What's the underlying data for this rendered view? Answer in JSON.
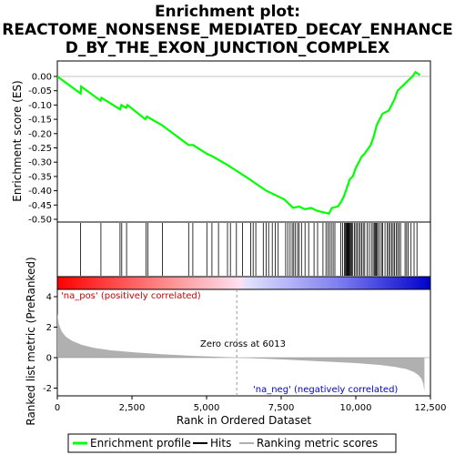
{
  "chart_data": {
    "type": "line",
    "title_line1": "Enrichment plot:",
    "title_line2": "REACTOME_NONSENSE_MEDIATED_DECAY_ENHANCE",
    "title_line3": "D_BY_THE_EXON_JUNCTION_COMPLEX",
    "es_ylabel": "Enrichment score (ES)",
    "metric_ylabel": "Ranked list metric (PreRanked)",
    "xlabel": "Rank in Ordered Dataset",
    "xlim": [
      0,
      12500
    ],
    "es_ylim": [
      -0.5,
      0.05
    ],
    "metric_ylim": [
      -2.5,
      4.6
    ],
    "x_ticks": [
      0,
      2500,
      5000,
      7500,
      10000,
      12500
    ],
    "x_tick_labels": [
      "0",
      "2,500",
      "5,000",
      "7,500",
      "10,000",
      "12,500"
    ],
    "es_ticks": [
      0.0,
      -0.05,
      -0.1,
      -0.15,
      -0.2,
      -0.25,
      -0.3,
      -0.35,
      -0.4,
      -0.45,
      -0.5
    ],
    "es_tick_labels": [
      "0.00",
      "-0.05",
      "-0.10",
      "-0.15",
      "-0.20",
      "-0.25",
      "-0.30",
      "-0.35",
      "-0.40",
      "-0.45",
      "-0.50"
    ],
    "metric_ticks": [
      4,
      2,
      0,
      -2
    ],
    "metric_tick_labels": [
      "4",
      "2",
      "0",
      "-2"
    ],
    "zero_cross_label": "Zero cross at 6013",
    "zero_cross_rank": 6013,
    "pos_label": "'na_pos' (positively correlated)",
    "neg_label": "'na_neg' (negatively correlated)",
    "n_ranks": 12300,
    "enrichment_profile": {
      "color": "#00ff00",
      "x": [
        0,
        780,
        800,
        1450,
        1480,
        2100,
        2150,
        2300,
        2350,
        2950,
        3000,
        3500,
        4400,
        4550,
        5000,
        5200,
        5700,
        6300,
        7000,
        7600,
        7800,
        7900,
        8100,
        8300,
        8500,
        8700,
        8900,
        9100,
        9200,
        9400,
        9500,
        9600,
        9700,
        9800,
        9900,
        10000,
        10100,
        10200,
        10300,
        10500,
        10600,
        10700,
        10800,
        10900,
        11100,
        11300,
        11400,
        11600,
        11800,
        11900,
        12000,
        12150
      ],
      "y": [
        0.0,
        -0.06,
        -0.035,
        -0.085,
        -0.075,
        -0.115,
        -0.1,
        -0.11,
        -0.1,
        -0.15,
        -0.14,
        -0.17,
        -0.24,
        -0.24,
        -0.27,
        -0.28,
        -0.31,
        -0.35,
        -0.4,
        -0.43,
        -0.45,
        -0.46,
        -0.455,
        -0.465,
        -0.46,
        -0.47,
        -0.475,
        -0.48,
        -0.46,
        -0.455,
        -0.44,
        -0.42,
        -0.39,
        -0.36,
        -0.35,
        -0.32,
        -0.3,
        -0.28,
        -0.27,
        -0.24,
        -0.21,
        -0.17,
        -0.15,
        -0.13,
        -0.12,
        -0.08,
        -0.05,
        -0.03,
        -0.01,
        0.0,
        0.015,
        0.005
      ]
    },
    "hits": {
      "color": "#000000",
      "ranks": [
        780,
        1460,
        2100,
        2160,
        2320,
        2970,
        3030,
        3520,
        4400,
        4540,
        5010,
        5180,
        5400,
        5700,
        5800,
        6000,
        6200,
        6480,
        6560,
        6650,
        6900,
        7000,
        7080,
        7200,
        7300,
        7400,
        7650,
        7720,
        7800,
        7870,
        7920,
        7980,
        8050,
        8100,
        8180,
        8300,
        8420,
        8600,
        8720,
        8900,
        9000,
        9060,
        9120,
        9180,
        9240,
        9300,
        9500,
        9560,
        9620,
        9650,
        9680,
        9700,
        9720,
        9740,
        9760,
        9780,
        9800,
        9830,
        9860,
        9900,
        9950,
        10000,
        10050,
        10100,
        10150,
        10200,
        10250,
        10300,
        10380,
        10450,
        10520,
        10580,
        10620,
        10650,
        10680,
        10700,
        10740,
        10800,
        10860,
        10900,
        10980,
        11050,
        11100,
        11150,
        11200,
        11250,
        11300,
        11350,
        11400,
        11450,
        11500,
        11650,
        11700,
        11750,
        11850,
        11950,
        12050
      ]
    },
    "metric_profile": {
      "color": "#b0b0b0",
      "x": [
        0,
        50,
        150,
        300,
        500,
        800,
        1200,
        1800,
        2500,
        3500,
        4500,
        5500,
        6013,
        7000,
        8000,
        9000,
        10000,
        10800,
        11300,
        11700,
        11950,
        12100,
        12200,
        12260,
        12300
      ],
      "y": [
        2.9,
        2.2,
        1.7,
        1.35,
        1.1,
        0.85,
        0.65,
        0.48,
        0.36,
        0.22,
        0.12,
        0.05,
        0.0,
        -0.08,
        -0.16,
        -0.26,
        -0.36,
        -0.48,
        -0.6,
        -0.75,
        -0.95,
        -1.15,
        -1.4,
        -1.7,
        -2.2
      ]
    },
    "legend": {
      "entries": [
        "Enrichment profile",
        "Hits",
        "Ranking metric scores"
      ],
      "colors": [
        "#00ff00",
        "#000000",
        "#b0b0b0"
      ],
      "placement": "bottom"
    },
    "colorbar": {
      "stops": [
        "#ff0000",
        "#ff9090",
        "#ffe0f0",
        "#e0e0ff",
        "#8080f0",
        "#0000cc"
      ]
    }
  }
}
